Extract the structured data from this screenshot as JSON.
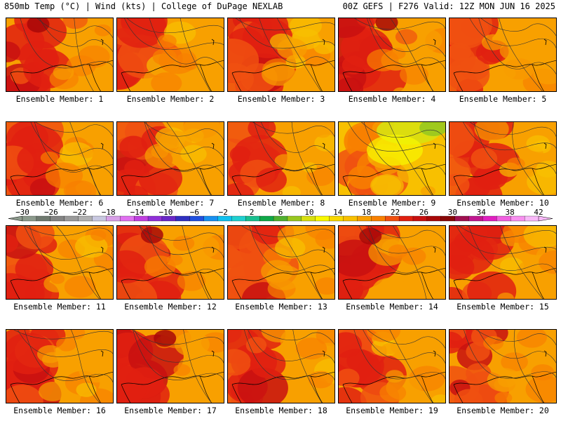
{
  "header": {
    "left": "850mb Temp (°C) | Wind (kts) | College of DuPage NEXLAB",
    "right": "00Z GEFS | F276 Valid: 12Z MON JUN 16 2025"
  },
  "panel_label_prefix": "Ensemble Member:",
  "members": [
    {
      "label": "Ensemble Member: 1",
      "warmth": 0.7
    },
    {
      "label": "Ensemble Member: 2",
      "warmth": 0.55
    },
    {
      "label": "Ensemble Member: 3",
      "warmth": 0.55
    },
    {
      "label": "Ensemble Member: 4",
      "warmth": 0.75
    },
    {
      "label": "Ensemble Member: 5",
      "warmth": 0.55
    },
    {
      "label": "Ensemble Member: 6",
      "warmth": 0.55
    },
    {
      "label": "Ensemble Member: 7",
      "warmth": 0.6
    },
    {
      "label": "Ensemble Member: 8",
      "warmth": 0.5
    },
    {
      "label": "Ensemble Member: 9",
      "warmth": 0.2
    },
    {
      "label": "Ensemble Member: 10",
      "warmth": 0.5
    },
    {
      "label": "Ensemble Member: 11",
      "warmth": 0.6
    },
    {
      "label": "Ensemble Member: 12",
      "warmth": 0.7
    },
    {
      "label": "Ensemble Member: 13",
      "warmth": 0.55
    },
    {
      "label": "Ensemble Member: 14",
      "warmth": 0.65
    },
    {
      "label": "Ensemble Member: 15",
      "warmth": 0.55
    },
    {
      "label": "Ensemble Member: 16",
      "warmth": 0.6
    },
    {
      "label": "Ensemble Member: 17",
      "warmth": 0.7
    },
    {
      "label": "Ensemble Member: 18",
      "warmth": 0.6
    },
    {
      "label": "Ensemble Member: 19",
      "warmth": 0.5
    },
    {
      "label": "Ensemble Member: 20",
      "warmth": 0.6
    }
  ],
  "colorbar": {
    "tick_labels": [
      "−30",
      "−26",
      "−22",
      "−18",
      "−14",
      "−10",
      "−6",
      "−2",
      "2",
      "6",
      "10",
      "14",
      "18",
      "22",
      "26",
      "30",
      "34",
      "38",
      "42"
    ],
    "colors": [
      "#8c9a8c",
      "#707a70",
      "#848484",
      "#9a9a9a",
      "#b0b0b0",
      "#c8c8e0",
      "#d8a0e8",
      "#e070f0",
      "#c040e0",
      "#9030d8",
      "#6a28c8",
      "#3030c0",
      "#2050e0",
      "#1890f0",
      "#10c0f0",
      "#20d0d0",
      "#18c090",
      "#10a848",
      "#50b030",
      "#98c820",
      "#d8e010",
      "#f8f800",
      "#f8d800",
      "#f8c000",
      "#f8a000",
      "#f88000",
      "#f05010",
      "#e02010",
      "#c81010",
      "#a80808",
      "#880808",
      "#a01050",
      "#c01890",
      "#e020c0",
      "#f060e0",
      "#f890f0",
      "#f8b8f8"
    ],
    "ramp": [
      "#f8f800",
      "#f8d800",
      "#f8c000",
      "#f8a000",
      "#f88000",
      "#f05010",
      "#e02010",
      "#c81010",
      "#a80808"
    ]
  }
}
